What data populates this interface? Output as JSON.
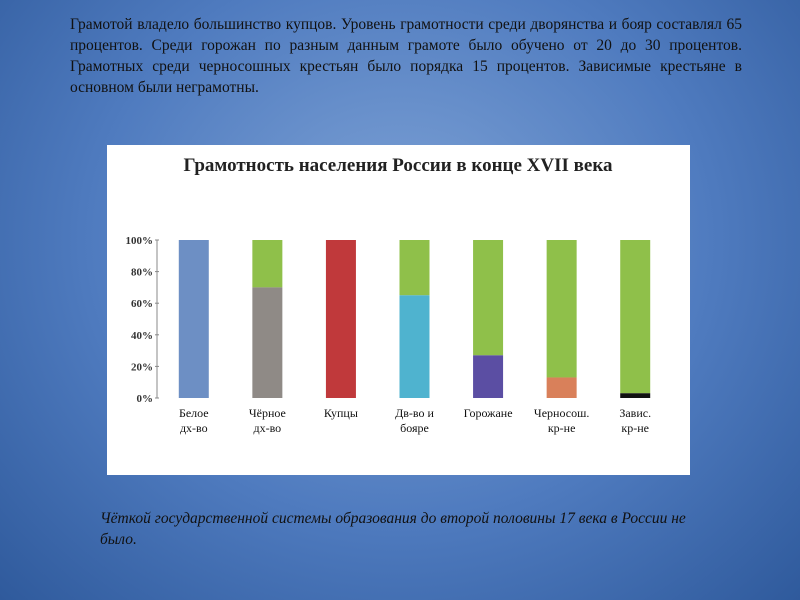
{
  "intro": "Грамотой владело большинство купцов. Уровень грамотности среди дворянства и бояр составлял 65 процентов. Среди горожан по разным данным грамоте было обучено от 20 до 30 процентов. Грамотных среди черносошных крестьян было порядка 15 процентов. Зависимые крестьяне в основном были неграмотны.",
  "note": "Чёткой государственной системы образования до второй половины 17 века в России не было.",
  "chart_data": {
    "type": "bar",
    "title": "Грамотность населения России в конце XVII века",
    "categories": [
      "Белое\nдх-во",
      "Чёрное\nдх-во",
      "Купцы",
      "Дв-во и\nбояре",
      "Горожане",
      "Черносош.\nкр-не",
      "Завис.\nкр-не"
    ],
    "values": [
      100,
      70,
      100,
      65,
      27,
      13,
      3
    ],
    "colors": [
      "#6d8fc4",
      "#8f8a86",
      "#c0393b",
      "#4fb3cf",
      "#5b4ea3",
      "#d9805a",
      "#111111"
    ],
    "remainder_color": "#8fc04a",
    "ylim": [
      0,
      100
    ],
    "yticks": [
      {
        "value": 0,
        "label": "0%"
      },
      {
        "value": 20,
        "label": "20%"
      },
      {
        "value": 40,
        "label": "40%"
      },
      {
        "value": 60,
        "label": "60%"
      },
      {
        "value": 80,
        "label": "80%"
      },
      {
        "value": 100,
        "label": "100%"
      }
    ],
    "grid": false
  }
}
